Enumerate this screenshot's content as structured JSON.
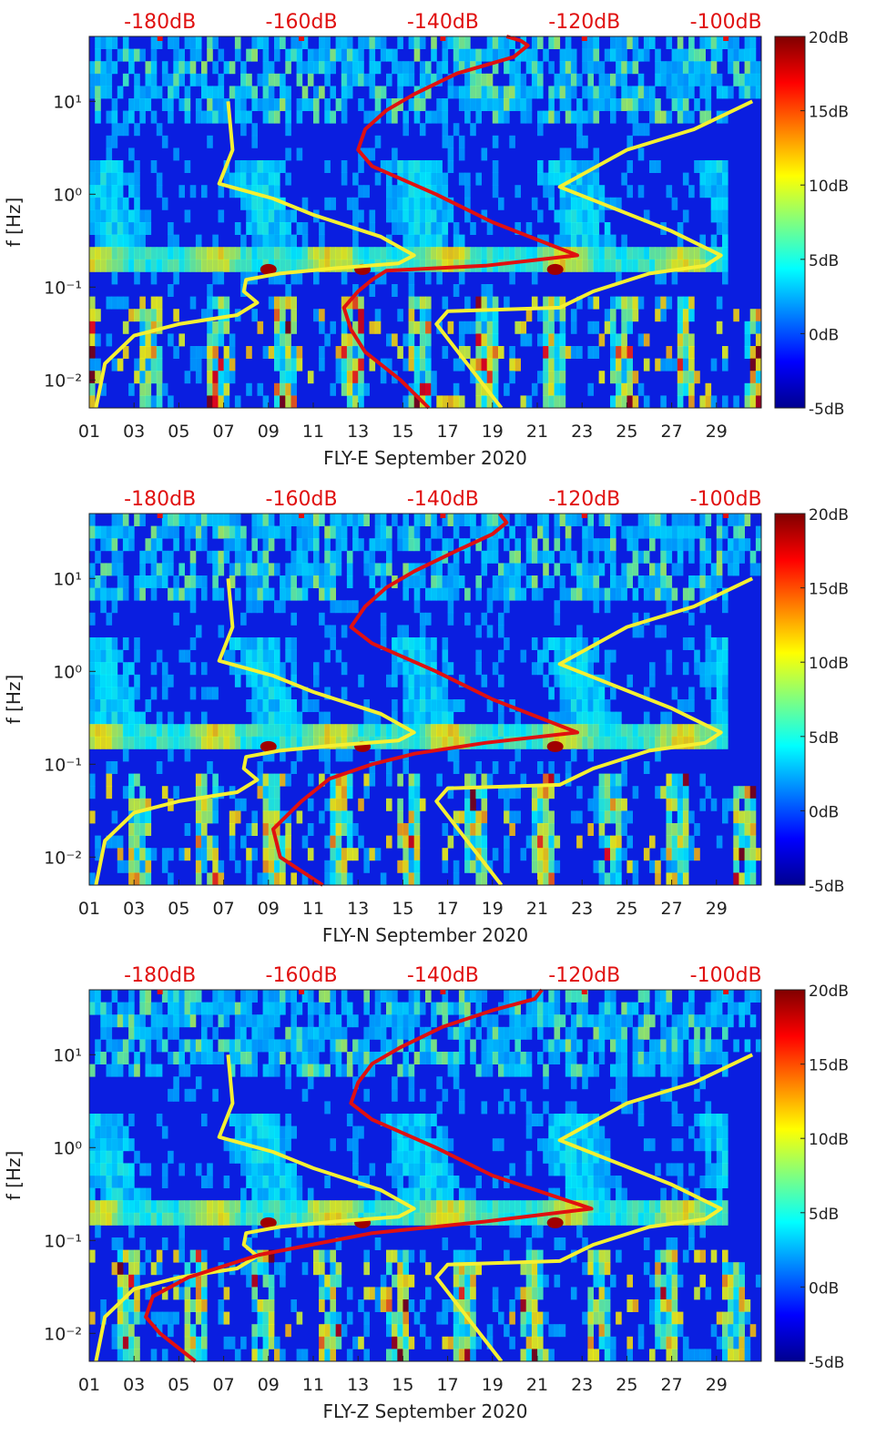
{
  "figure": {
    "description_label": "Spectrogram panels"
  },
  "colors": {
    "red_curve": "#e01010",
    "yellow_curve": "#f5f032",
    "top_tick_label": "#e01010"
  },
  "colorbar": {
    "range": [
      -5,
      20
    ],
    "tick_labels": [
      "20dB",
      "15dB",
      "10dB",
      "5dB",
      "0dB",
      "-5dB"
    ],
    "tick_values": [
      20,
      15,
      10,
      5,
      0,
      -5
    ]
  },
  "top_axis": {
    "tick_labels": [
      "-180dB",
      "-160dB",
      "-140dB",
      "-120dB",
      "-100dB"
    ],
    "tick_values": [
      -180,
      -160,
      -140,
      -120,
      -100
    ],
    "range": [
      -190,
      -95
    ]
  },
  "chart_data": [
    {
      "type": "heatmap",
      "title": "",
      "xlabel": "FLY-E September 2020",
      "ylabel": "f [Hz]",
      "x_tick_labels": [
        "01",
        "03",
        "05",
        "07",
        "09",
        "11",
        "13",
        "15",
        "17",
        "19",
        "21",
        "23",
        "25",
        "27",
        "29"
      ],
      "x_range": [
        1,
        31
      ],
      "y_tick_labels": [
        "10¹",
        "10⁰",
        "10⁻¹",
        "10⁻²"
      ],
      "y_tick_values": [
        10,
        1,
        0.1,
        0.01
      ],
      "y_range": [
        0.005,
        50
      ],
      "y_scale": "log",
      "series": [
        {
          "name": "yellow-left",
          "color": "yellow",
          "x_day": [
            1.3,
            1.7,
            3.0,
            5.0,
            7.6,
            8.5,
            7.9,
            8.0,
            9.5,
            12.0,
            14.8,
            15.5,
            14.0,
            11.0,
            9.2,
            6.8,
            7.4,
            7.2
          ],
          "f_hz": [
            0.005,
            0.015,
            0.03,
            0.04,
            0.05,
            0.068,
            0.09,
            0.12,
            0.14,
            0.16,
            0.18,
            0.22,
            0.35,
            0.6,
            0.9,
            1.3,
            3,
            10
          ]
        },
        {
          "name": "yellow-right",
          "color": "yellow",
          "x_day": [
            19.4,
            16.5,
            17.0,
            22.0,
            23.5,
            26.0,
            28.5,
            29.2,
            27.0,
            22.0,
            25.0,
            28.0,
            30.6
          ],
          "f_hz": [
            0.005,
            0.04,
            0.055,
            0.06,
            0.09,
            0.14,
            0.17,
            0.22,
            0.4,
            1.2,
            3,
            5,
            10
          ]
        },
        {
          "name": "red-noise-model",
          "color": "red",
          "top_axis_db": [
            -142,
            -146,
            -151,
            -153,
            -154,
            -152,
            -150,
            -148,
            -134,
            -121,
            -133,
            -141,
            -150,
            -152,
            -151,
            -148,
            -144,
            -138,
            -130,
            -128,
            -129,
            -131
          ],
          "f_hz": [
            0.005,
            0.01,
            0.02,
            0.035,
            0.06,
            0.09,
            0.12,
            0.15,
            0.17,
            0.22,
            0.5,
            1,
            2,
            3,
            5,
            8,
            12,
            20,
            30,
            40,
            45,
            50
          ]
        }
      ]
    },
    {
      "type": "heatmap",
      "title": "",
      "xlabel": "FLY-N September 2020",
      "ylabel": "f [Hz]",
      "x_tick_labels": [
        "01",
        "03",
        "05",
        "07",
        "09",
        "11",
        "13",
        "15",
        "17",
        "19",
        "21",
        "23",
        "25",
        "27",
        "29"
      ],
      "x_range": [
        1,
        31
      ],
      "y_tick_labels": [
        "10¹",
        "10⁰",
        "10⁻¹",
        "10⁻²"
      ],
      "y_tick_values": [
        10,
        1,
        0.1,
        0.01
      ],
      "y_range": [
        0.005,
        50
      ],
      "y_scale": "log",
      "series": [
        {
          "name": "yellow-left",
          "color": "yellow",
          "x_day": [
            1.3,
            1.7,
            3.0,
            5.0,
            7.6,
            8.5,
            7.9,
            8.0,
            9.5,
            12.0,
            14.8,
            15.5,
            14.0,
            11.0,
            9.2,
            6.8,
            7.4,
            7.2
          ],
          "f_hz": [
            0.005,
            0.015,
            0.03,
            0.04,
            0.05,
            0.068,
            0.09,
            0.12,
            0.14,
            0.16,
            0.18,
            0.22,
            0.35,
            0.6,
            0.9,
            1.3,
            3,
            10
          ]
        },
        {
          "name": "yellow-right",
          "color": "yellow",
          "x_day": [
            19.4,
            16.5,
            17.0,
            22.0,
            23.5,
            26.0,
            28.5,
            29.2,
            27.0,
            22.0,
            25.0,
            28.0,
            30.6
          ],
          "f_hz": [
            0.005,
            0.04,
            0.055,
            0.06,
            0.09,
            0.14,
            0.17,
            0.22,
            0.4,
            1.2,
            3,
            5,
            10
          ]
        },
        {
          "name": "red-noise-model",
          "color": "red",
          "top_axis_db": [
            -157,
            -163,
            -164,
            -160,
            -156,
            -150,
            -144,
            -134,
            -121,
            -133,
            -141,
            -150,
            -153,
            -151,
            -148,
            -144,
            -138,
            -133,
            -131,
            -132
          ],
          "f_hz": [
            0.005,
            0.01,
            0.02,
            0.04,
            0.07,
            0.1,
            0.13,
            0.17,
            0.22,
            0.5,
            1,
            2,
            3,
            5,
            8,
            12,
            20,
            30,
            40,
            50
          ]
        }
      ]
    },
    {
      "type": "heatmap",
      "title": "",
      "xlabel": "FLY-Z September 2020",
      "ylabel": "f [Hz]",
      "x_tick_labels": [
        "01",
        "03",
        "05",
        "07",
        "09",
        "11",
        "13",
        "15",
        "17",
        "19",
        "21",
        "23",
        "25",
        "27",
        "29"
      ],
      "x_range": [
        1,
        31
      ],
      "y_tick_labels": [
        "10¹",
        "10⁰",
        "10⁻¹",
        "10⁻²"
      ],
      "y_tick_values": [
        10,
        1,
        0.1,
        0.01
      ],
      "y_range": [
        0.005,
        50
      ],
      "y_scale": "log",
      "series": [
        {
          "name": "yellow-left",
          "color": "yellow",
          "x_day": [
            1.3,
            1.7,
            3.0,
            5.0,
            7.6,
            8.5,
            7.9,
            8.0,
            9.5,
            12.0,
            14.8,
            15.5,
            14.0,
            11.0,
            9.2,
            6.8,
            7.4,
            7.2
          ],
          "f_hz": [
            0.005,
            0.015,
            0.03,
            0.04,
            0.05,
            0.068,
            0.09,
            0.12,
            0.14,
            0.16,
            0.18,
            0.22,
            0.35,
            0.6,
            0.9,
            1.3,
            3,
            10
          ]
        },
        {
          "name": "yellow-right",
          "color": "yellow",
          "x_day": [
            19.4,
            16.5,
            17.0,
            22.0,
            23.5,
            26.0,
            28.5,
            29.2,
            27.0,
            22.0,
            25.0,
            28.0,
            30.6
          ],
          "f_hz": [
            0.005,
            0.04,
            0.055,
            0.06,
            0.09,
            0.14,
            0.17,
            0.22,
            0.4,
            1.2,
            3,
            5,
            10
          ]
        },
        {
          "name": "red-noise-model",
          "color": "red",
          "top_axis_db": [
            -175,
            -180,
            -182,
            -181,
            -176,
            -166,
            -150,
            -134,
            -119,
            -133,
            -141,
            -150,
            -153,
            -152,
            -150,
            -146,
            -140,
            -133,
            -127,
            -126
          ],
          "f_hz": [
            0.005,
            0.01,
            0.015,
            0.025,
            0.04,
            0.07,
            0.12,
            0.16,
            0.22,
            0.5,
            1,
            2,
            3,
            5,
            8,
            12,
            20,
            30,
            40,
            50
          ]
        }
      ]
    }
  ]
}
